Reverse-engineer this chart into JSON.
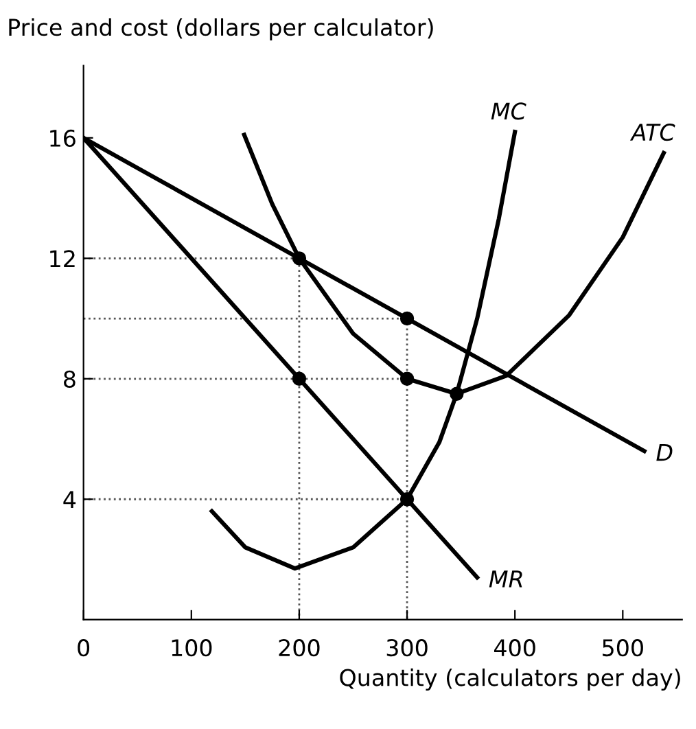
{
  "chart_data": {
    "type": "line",
    "ylabel": "Price and cost (dollars per calculator)",
    "xlabel": "Quantity (calculators per day)",
    "xlim": [
      0,
      555
    ],
    "ylim": [
      0,
      18.4
    ],
    "xticks": [
      0,
      100,
      200,
      300,
      400,
      500
    ],
    "yticks": [
      4,
      8,
      12,
      16
    ],
    "grid": false,
    "legend": false,
    "series": [
      {
        "name": "D",
        "color": "#000000",
        "x": [
          0,
          520
        ],
        "values": [
          16,
          5.6
        ]
      },
      {
        "name": "MR",
        "color": "#000000",
        "x": [
          0,
          365
        ],
        "values": [
          16,
          1.4
        ]
      },
      {
        "name": "MC",
        "color": "#000000",
        "x": [
          119,
          150,
          196,
          250,
          300,
          330,
          346,
          365,
          385,
          400
        ],
        "values": [
          3.6,
          2.4,
          1.7,
          2.4,
          4,
          5.9,
          7.5,
          10,
          13.3,
          16.2
        ]
      },
      {
        "name": "ATC",
        "color": "#000000",
        "x": [
          149,
          175,
          200,
          250,
          300,
          346,
          392,
          450,
          500,
          538
        ],
        "values": [
          16.1,
          13.8,
          12,
          9.5,
          8,
          7.5,
          8.1,
          10.1,
          12.7,
          15.5
        ]
      },
      {
        "type": "line",
        "line_style": "dotted",
        "color": "#555555",
        "x": [
          0,
          200,
          200
        ],
        "values": [
          12,
          12,
          0
        ]
      },
      {
        "type": "line",
        "line_style": "dotted",
        "color": "#555555",
        "x": [
          0,
          300,
          300
        ],
        "values": [
          10,
          10,
          0
        ]
      },
      {
        "type": "line",
        "line_style": "dotted",
        "color": "#555555",
        "x": [
          0,
          300
        ],
        "values": [
          8,
          8
        ]
      },
      {
        "type": "line",
        "line_style": "dotted",
        "color": "#555555",
        "x": [
          0,
          300
        ],
        "values": [
          4,
          4
        ]
      },
      {
        "type": "scatter",
        "marker": "circle",
        "color": "#000000",
        "x": [
          200,
          200,
          300,
          300,
          300,
          346
        ],
        "values": [
          12,
          8,
          10,
          8,
          4,
          7.5
        ]
      }
    ]
  }
}
